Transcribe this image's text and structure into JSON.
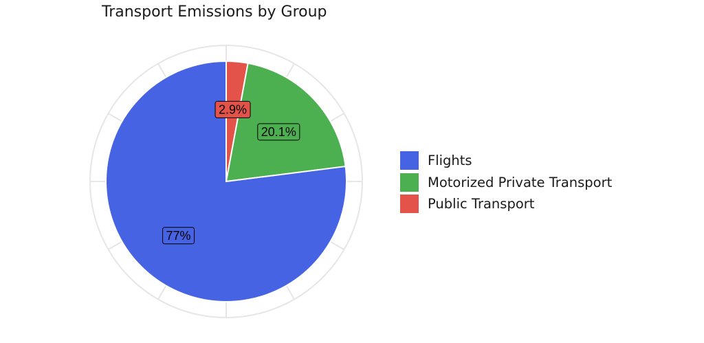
{
  "chart_data": {
    "type": "pie",
    "title": "Transport Emissions by Group",
    "categories": [
      "Public Transport",
      "Motorized Private Transport",
      "Flights"
    ],
    "values": [
      2.9,
      20.1,
      77
    ],
    "labels": [
      "2.9%",
      "20.1%",
      "77%"
    ],
    "colors": [
      "#e4534a",
      "#4caf50",
      "#4663e3"
    ],
    "start_angle_deg": 0,
    "direction": "clockwise",
    "legend": {
      "position": "right",
      "entries": [
        {
          "label": "Flights",
          "color": "#4663e3"
        },
        {
          "label": "Motorized Private Transport",
          "color": "#4caf50"
        },
        {
          "label": "Public Transport",
          "color": "#e4534a"
        }
      ]
    }
  }
}
